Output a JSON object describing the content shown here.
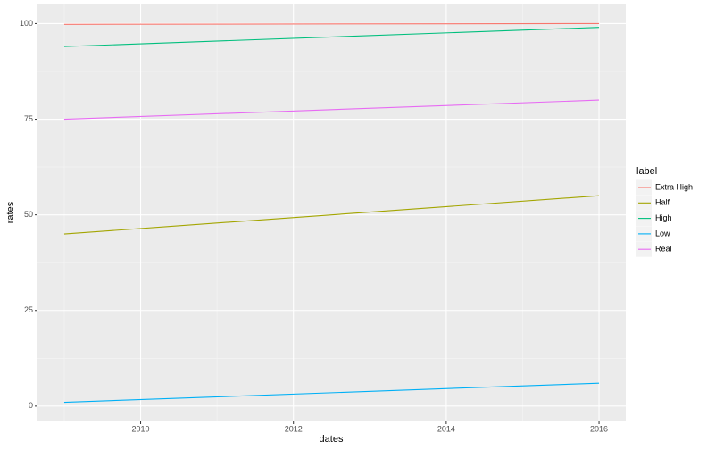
{
  "chart_data": {
    "type": "line",
    "x_label": "dates",
    "y_label": "rates",
    "legend_title": "label",
    "x": [
      2009,
      2016
    ],
    "series": [
      {
        "name": "Extra High",
        "color": "#F8766D",
        "values": [
          99.8,
          100
        ]
      },
      {
        "name": "Half",
        "color": "#A3A500",
        "values": [
          45,
          55
        ]
      },
      {
        "name": "High",
        "color": "#00BF7D",
        "values": [
          94,
          99
        ]
      },
      {
        "name": "Low",
        "color": "#00B0F6",
        "values": [
          1,
          6
        ]
      },
      {
        "name": "Real",
        "color": "#E76BF3",
        "values": [
          75,
          80
        ]
      }
    ],
    "xlim": [
      2008.65,
      2016.35
    ],
    "xticks": [
      2010,
      2012,
      2014,
      2016
    ],
    "ylim": [
      -4,
      105
    ],
    "yticks": [
      0,
      25,
      50,
      75,
      100
    ],
    "grid": true,
    "legend_position": "right"
  }
}
